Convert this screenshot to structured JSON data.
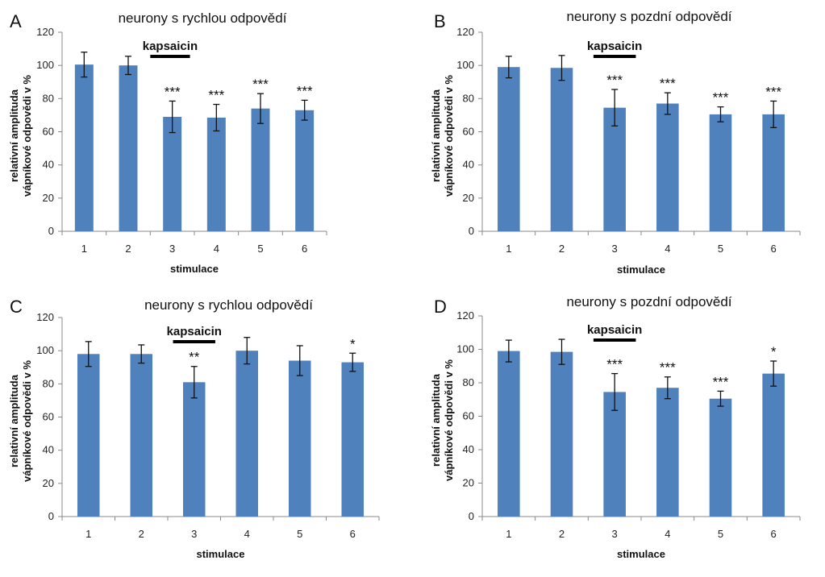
{
  "chart_data": [
    {
      "panel": "A",
      "type": "bar",
      "title": "neurony s rychlou odpovědí",
      "xlabel": "stimulace",
      "ylabel_lines": [
        "relativní amplituda",
        "vápníkové odpovědi v  %"
      ],
      "categories": [
        "1",
        "2",
        "3",
        "4",
        "5",
        "6"
      ],
      "values": [
        100.5,
        100,
        69,
        68.5,
        74,
        73
      ],
      "errors": [
        7.5,
        5.5,
        9.5,
        8,
        9,
        6
      ],
      "significance": [
        "",
        "",
        "***",
        "***",
        "***",
        "***"
      ],
      "ylim": [
        0,
        120
      ],
      "yticks": [
        0,
        20,
        40,
        60,
        80,
        100,
        120
      ],
      "annotation": {
        "label": "kapsaicin",
        "from": 2.5,
        "to": 3.4
      },
      "color": "#4F81BD"
    },
    {
      "panel": "B",
      "type": "bar",
      "title": "neurony s pozdní odpovědí",
      "xlabel": "stimulace",
      "ylabel_lines": [
        "relativní amplituda",
        "vápníkové odpovědi v  %"
      ],
      "categories": [
        "1",
        "2",
        "3",
        "4",
        "5",
        "6"
      ],
      "values": [
        99,
        98.5,
        74.5,
        77,
        70.5,
        70.5
      ],
      "errors": [
        6.5,
        7.5,
        11,
        6.5,
        4.5,
        8
      ],
      "significance": [
        "",
        "",
        "***",
        "***",
        "***",
        "***"
      ],
      "ylim": [
        0,
        120
      ],
      "yticks": [
        0,
        20,
        40,
        60,
        80,
        100,
        120
      ],
      "annotation": {
        "label": "kapsaicin",
        "from": 2.6,
        "to": 3.4
      },
      "color": "#4F81BD"
    },
    {
      "panel": "C",
      "type": "bar",
      "title": "neurony s rychlou odpovědí",
      "xlabel": "stimulace",
      "ylabel_lines": [
        "relativní amplituda",
        "vápníkové odpovědi v  %"
      ],
      "categories": [
        "1",
        "2",
        "3",
        "4",
        "5",
        "6"
      ],
      "values": [
        98,
        98,
        81,
        100,
        94,
        93
      ],
      "errors": [
        7.5,
        5.5,
        9.5,
        8,
        9,
        5.5
      ],
      "significance": [
        "",
        "",
        "**",
        "",
        "",
        "*"
      ],
      "ylim": [
        0,
        120
      ],
      "yticks": [
        0,
        20,
        40,
        60,
        80,
        100,
        120
      ],
      "annotation": {
        "label": "kapsaicin",
        "from": 2.6,
        "to": 3.4
      },
      "color": "#4F81BD"
    },
    {
      "panel": "D",
      "type": "bar",
      "title": "neurony s pozdní odpovědí",
      "xlabel": "stimulace",
      "ylabel_lines": [
        "relativní amplituda",
        "vápníkové odpovědi v  %"
      ],
      "categories": [
        "1",
        "2",
        "3",
        "4",
        "5",
        "6"
      ],
      "values": [
        99,
        98.5,
        74.5,
        77,
        70.5,
        85.5
      ],
      "errors": [
        6.5,
        7.5,
        11,
        6.5,
        4.5,
        7.5
      ],
      "significance": [
        "",
        "",
        "***",
        "***",
        "***",
        "*"
      ],
      "ylim": [
        0,
        120
      ],
      "yticks": [
        0,
        20,
        40,
        60,
        80,
        100,
        120
      ],
      "annotation": {
        "label": "kapsaicin",
        "from": 2.6,
        "to": 3.4
      },
      "color": "#4F81BD"
    }
  ]
}
